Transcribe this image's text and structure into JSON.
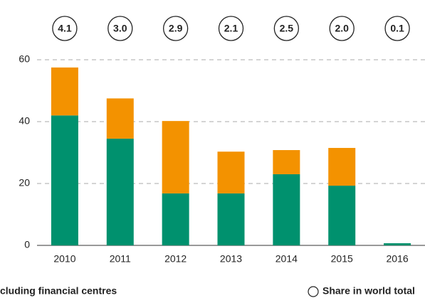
{
  "chart_data": {
    "type": "stacked_bar",
    "categories": [
      "2010",
      "2011",
      "2012",
      "2013",
      "2014",
      "2015",
      "2016"
    ],
    "series": [
      {
        "name": "cluding financial centres",
        "color": "#00916e",
        "values": [
          42,
          34.5,
          16.8,
          16.8,
          23,
          19.3,
          0.7
        ]
      },
      {
        "color": "#f39200",
        "values": [
          15.5,
          13,
          23.4,
          13.5,
          7.8,
          12.2,
          0
        ]
      }
    ],
    "share_labels": [
      "4.1",
      "3.0",
      "2.9",
      "2.1",
      "2.5",
      "2.0",
      "0.1"
    ],
    "share_legend": "Share in world total",
    "ylim": [
      0,
      60
    ],
    "yticks": [
      0,
      20,
      40,
      60
    ],
    "grid": true
  }
}
